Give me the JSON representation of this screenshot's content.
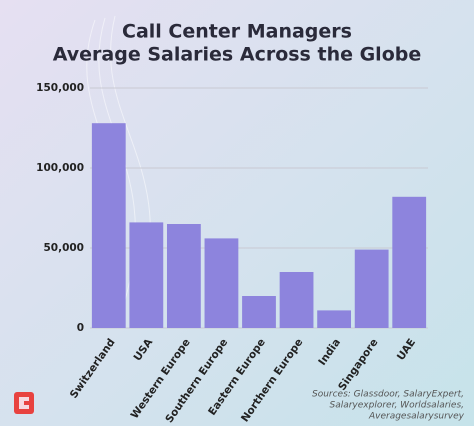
{
  "chart_data": {
    "type": "bar",
    "title": [
      "Call Center Managers",
      "Average Salaries Across the Globe"
    ],
    "categories": [
      "Switzerland",
      "USA",
      "Western Europe",
      "Southern Europe",
      "Eastern Europe",
      "Northern Europe",
      "India",
      "Singapore",
      "UAE"
    ],
    "values": [
      128000,
      66000,
      65000,
      56000,
      20000,
      35000,
      11000,
      49000,
      82000
    ],
    "color": "#8d84dd",
    "ylim": [
      0,
      150000
    ],
    "yticks": [
      0,
      {
        "value": 50000,
        "label": "50,000"
      },
      {
        "value": 100000,
        "label": "100,000"
      },
      {
        "value": 150000,
        "label": "150,000"
      }
    ],
    "grid": true,
    "source": [
      "Sources: Glassdoor, SalaryExpert,",
      "Salaryexplorer, Worldsalaries,",
      "Averagesalarysurvey"
    ]
  }
}
